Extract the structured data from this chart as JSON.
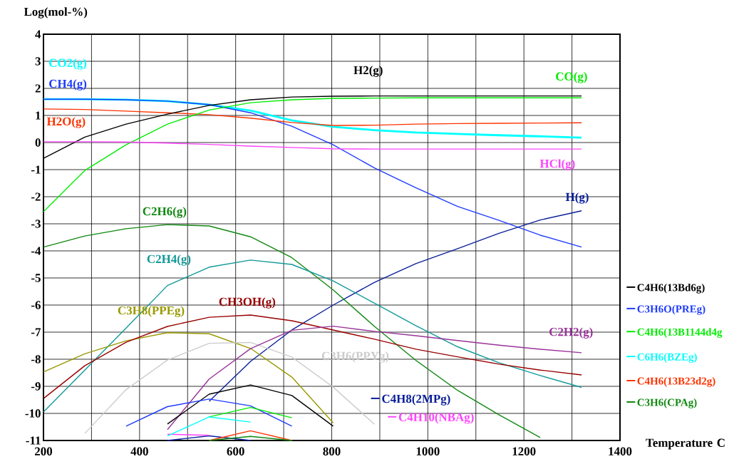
{
  "chart_data": {
    "type": "line",
    "ylabel": "Log(mol-%)",
    "xlabel": "Temperature C",
    "xlim": [
      200,
      1400
    ],
    "ylim": [
      -11,
      4
    ],
    "xticks": [
      200,
      {
        "value": 300,
        "label": null
      },
      400,
      {
        "value": 500,
        "label": null
      },
      600,
      {
        "value": 700,
        "label": null
      },
      800,
      {
        "value": 900,
        "label": null
      },
      1000,
      {
        "value": 1100,
        "label": null
      },
      1200,
      {
        "value": 1300,
        "label": null
      },
      1400
    ],
    "yticks": [
      -11,
      -10,
      -9,
      -8,
      -7,
      -6,
      -5,
      -4,
      -3,
      -2,
      -1,
      0,
      1,
      2,
      3,
      4
    ],
    "grid": true,
    "legend": "right",
    "marker": "none",
    "line_style": "solid",
    "x": [
      200,
      286,
      372,
      458,
      545,
      631,
      717,
      803,
      889,
      975,
      1062,
      1148,
      1234,
      1320
    ],
    "series": [
      {
        "name": "CO2(g)",
        "color": "#00ffff",
        "values": [
          1.6,
          1.6,
          1.58,
          1.53,
          1.4,
          1.18,
          0.82,
          0.58,
          0.46,
          0.37,
          0.32,
          0.27,
          0.23,
          0.18
        ]
      },
      {
        "name": "CH4(g)",
        "color": "#1f3cff",
        "values": [
          1.6,
          1.6,
          1.58,
          1.53,
          1.4,
          1.1,
          0.6,
          -0.08,
          -0.94,
          -1.67,
          -2.36,
          -2.87,
          -3.42,
          -3.86
        ]
      },
      {
        "name": "H2O(g)",
        "color": "#ff3300",
        "values": [
          1.24,
          1.22,
          1.16,
          1.1,
          1.03,
          0.9,
          0.74,
          0.63,
          0.64,
          0.68,
          0.7,
          0.71,
          0.72,
          0.73
        ]
      },
      {
        "name": "H2(g)",
        "color": "#000000",
        "values": [
          -0.58,
          0.2,
          0.68,
          1.05,
          1.37,
          1.58,
          1.68,
          1.71,
          1.72,
          1.72,
          1.72,
          1.72,
          1.72,
          1.72
        ]
      },
      {
        "name": "CO(g)",
        "color": "#00ee00",
        "values": [
          -2.55,
          -1.03,
          -0.08,
          0.68,
          1.2,
          1.47,
          1.58,
          1.63,
          1.64,
          1.65,
          1.65,
          1.65,
          1.65,
          1.65
        ]
      },
      {
        "name": "HCl(g)",
        "color": "#ff44ff",
        "values": [
          0.03,
          0.03,
          0.02,
          -0.02,
          -0.07,
          -0.13,
          -0.18,
          -0.23,
          -0.24,
          -0.24,
          -0.24,
          -0.24,
          -0.24,
          -0.24
        ]
      },
      {
        "name": "H(g)",
        "color": "#0a1f99",
        "values": [
          null,
          null,
          null,
          null,
          -9.55,
          -8.08,
          -6.92,
          -6.0,
          -5.16,
          -4.47,
          -3.92,
          -3.35,
          -2.86,
          -2.52
        ]
      },
      {
        "name": "C2H6(g)",
        "color": "#118811",
        "values": [
          -3.86,
          -3.45,
          -3.18,
          -3.03,
          -3.08,
          -3.48,
          -4.25,
          -5.44,
          -6.79,
          -8.04,
          -9.15,
          -10.05,
          -10.89,
          null
        ]
      },
      {
        "name": "C2H4(g)",
        "color": "#119999",
        "values": [
          -9.95,
          -8.4,
          -6.85,
          -5.28,
          -4.6,
          -4.34,
          -4.5,
          -5.11,
          -5.93,
          -6.76,
          -7.54,
          -8.13,
          -8.6,
          -9.04
        ]
      },
      {
        "name": "C3H8(PPEg)",
        "color": "#999900",
        "values": [
          -8.47,
          -7.8,
          -7.32,
          -7.02,
          -7.06,
          -7.6,
          -8.66,
          -10.35,
          null,
          null,
          null,
          null,
          null,
          null
        ]
      },
      {
        "name": "CH3OH(g)",
        "color": "#990000",
        "values": [
          -9.45,
          -8.24,
          -7.37,
          -6.79,
          -6.45,
          -6.37,
          -6.58,
          -6.92,
          -7.26,
          -7.63,
          -7.91,
          -8.18,
          -8.4,
          -8.58
        ]
      },
      {
        "name": "C3H6(PPYg)",
        "color": "#cccccc",
        "values": [
          null,
          -10.74,
          -9.12,
          -8.03,
          -7.41,
          -7.38,
          -7.92,
          -9.03,
          -10.4,
          null,
          null,
          null,
          null,
          null
        ]
      },
      {
        "name": "C2H2(g)",
        "color": "#993399",
        "values": [
          null,
          null,
          null,
          -10.6,
          -8.73,
          -7.61,
          -6.93,
          -6.78,
          -6.97,
          -7.13,
          -7.31,
          -7.48,
          -7.63,
          -7.76
        ]
      },
      {
        "name": "C4H8(2MPg)",
        "color": "#0a1f99",
        "values": [
          null,
          null,
          null,
          -11,
          -10.83,
          -11,
          null,
          null,
          null,
          null,
          null,
          null,
          null,
          null
        ]
      },
      {
        "name": "C4H10(NBAg)",
        "color": "#ff44ff",
        "values": [
          null,
          null,
          null,
          -10.77,
          -10.81,
          null,
          null,
          null,
          null,
          null,
          null,
          null,
          null,
          null
        ]
      },
      {
        "name": "C4H6(13Bd6g)",
        "color": "#000000",
        "values": [
          null,
          null,
          null,
          -10.39,
          -9.29,
          -8.95,
          -9.34,
          -10.47,
          null,
          null,
          null,
          null,
          null,
          null
        ]
      },
      {
        "name": "C3H6O(PREg)",
        "color": "#1f3cff",
        "values": [
          null,
          null,
          -10.47,
          -9.75,
          -9.47,
          -9.72,
          -10.47,
          null,
          null,
          null,
          null,
          null,
          null,
          null
        ]
      },
      {
        "name": "C4H6(13B1144d4g",
        "color": "#00ee00",
        "values": [
          null,
          null,
          null,
          null,
          -10.13,
          -9.78,
          -10.16,
          null,
          null,
          null,
          null,
          null,
          null,
          null
        ]
      },
      {
        "name": "C6H6(BZEg)",
        "color": "#00ffff",
        "values": [
          null,
          null,
          null,
          -10.83,
          -10.13,
          -10.32,
          null,
          null,
          null,
          null,
          null,
          null,
          null,
          null
        ]
      },
      {
        "name": "C4H6(13B23d2g)",
        "color": "#ff3300",
        "values": [
          null,
          null,
          null,
          null,
          -11,
          -10.64,
          -11,
          null,
          null,
          null,
          null,
          null,
          null,
          null
        ]
      },
      {
        "name": "C3H6(CPAg)",
        "color": "#118811",
        "values": [
          null,
          null,
          null,
          null,
          -11,
          -10.85,
          -11,
          null,
          null,
          null,
          null,
          null,
          null,
          null
        ]
      }
    ]
  }
}
